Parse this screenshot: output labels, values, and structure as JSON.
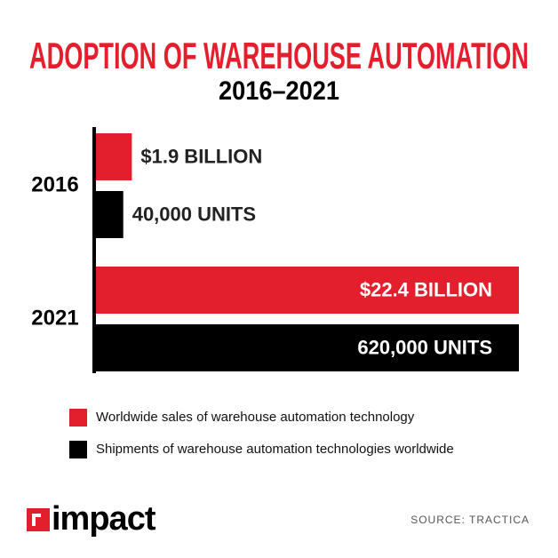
{
  "chart_data": {
    "type": "bar",
    "orientation": "horizontal",
    "title": "ADOPTION OF WAREHOUSE AUTOMATION",
    "subtitle": "2016–2021",
    "categories": [
      "2016",
      "2021"
    ],
    "series": [
      {
        "name": "Worldwide sales of warehouse automation technology",
        "color": "#e31e2d",
        "values": [
          1.9,
          22.4
        ],
        "value_labels": [
          "$1.9 BILLION",
          "$22.4 BILLION"
        ]
      },
      {
        "name": "Shipments of warehouse automation technologies worldwide",
        "color": "#000000",
        "values": [
          40000,
          620000
        ],
        "value_labels": [
          "40,000 UNITS",
          "620,000 UNITS"
        ]
      }
    ],
    "source": "SOURCE: TRACTICA",
    "logo": "impact"
  }
}
